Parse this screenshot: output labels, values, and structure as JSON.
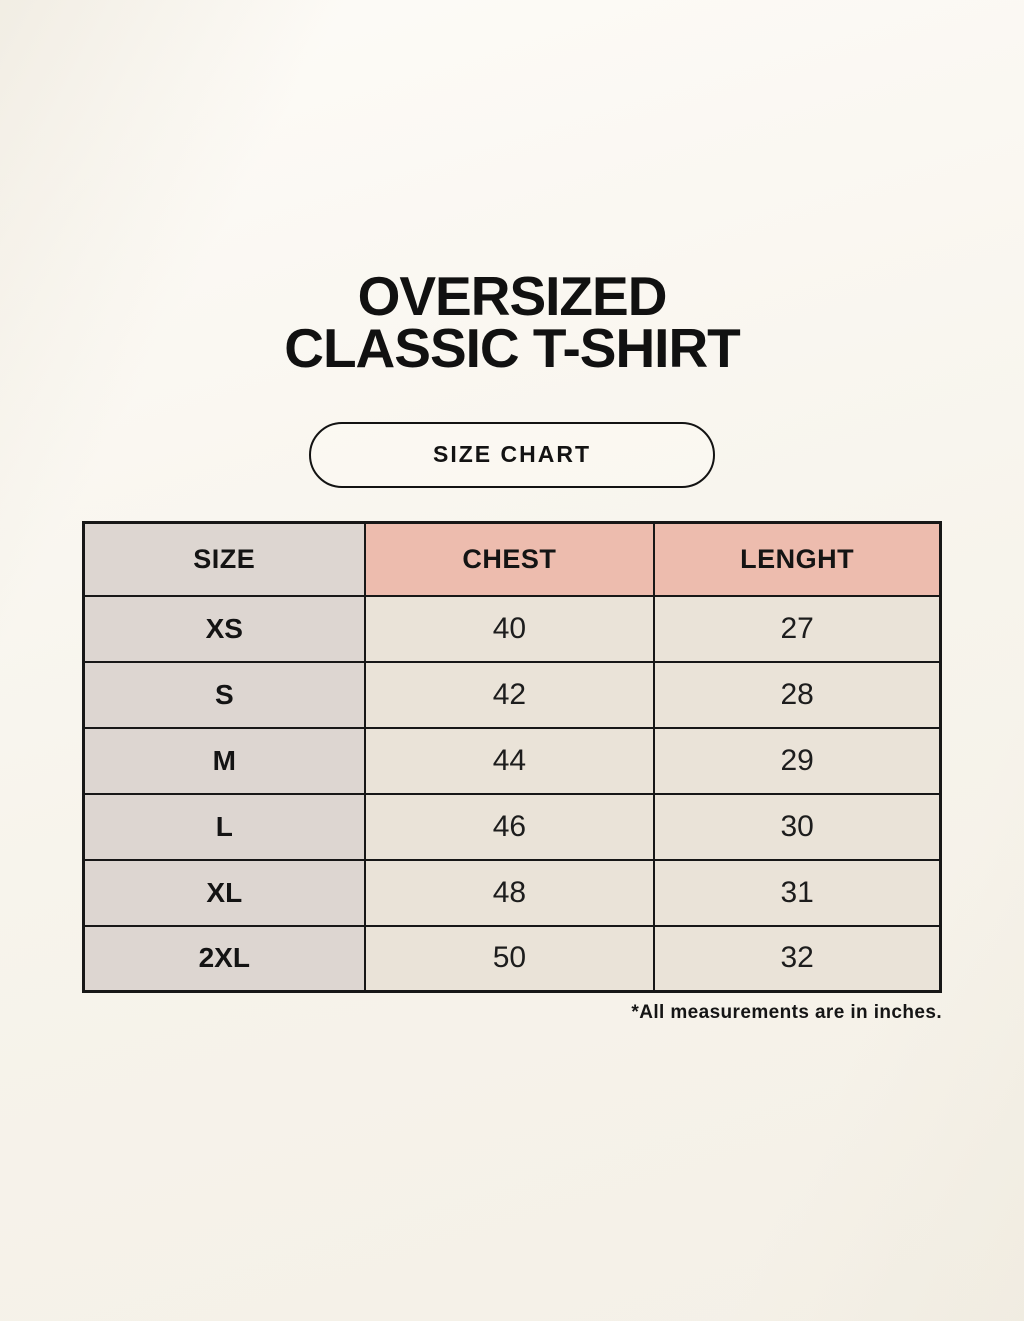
{
  "page": {
    "title_line1": "OVERSIZED",
    "title_line2": "CLASSIC T-SHIRT",
    "badge_label": "SIZE CHART"
  },
  "colors": {
    "background": "#f8f5ee",
    "header_pink": "#edbcae",
    "size_column_grey": "#ddd6d1",
    "cell_beige": "#eae3d8",
    "border": "#171717"
  },
  "chart_data": {
    "type": "table",
    "title": "OVERSIZED CLASSIC T-SHIRT",
    "subtitle": "SIZE CHART",
    "columns": [
      "SIZE",
      "CHEST",
      "LENGHT"
    ],
    "rows": [
      [
        "XS",
        "40",
        "27"
      ],
      [
        "S",
        "42",
        "28"
      ],
      [
        "M",
        "44",
        "29"
      ],
      [
        "L",
        "46",
        "30"
      ],
      [
        "XL",
        "48",
        "31"
      ],
      [
        "2XL",
        "50",
        "32"
      ]
    ],
    "units": "inches",
    "footnote": "*All measurements are in inches."
  }
}
